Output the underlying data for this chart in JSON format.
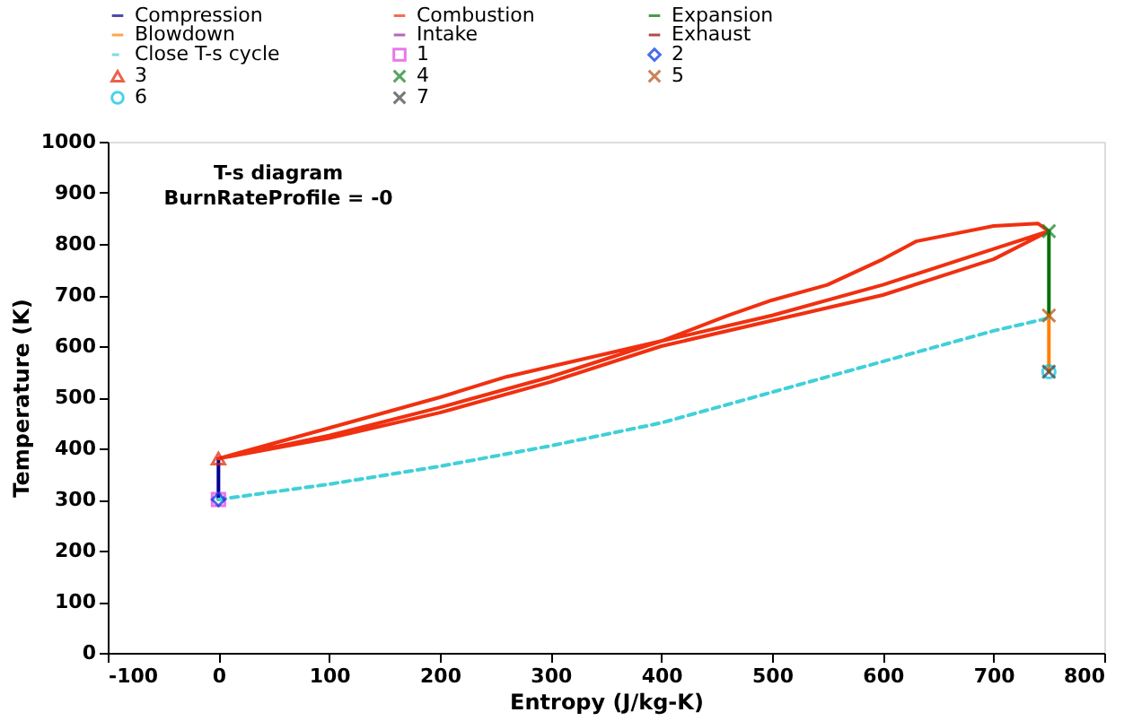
{
  "chart_data": {
    "type": "line",
    "xlabel": "Entropy (J/kg-K)",
    "ylabel": "Temperature (K)",
    "xlim": [
      -100,
      800
    ],
    "xticks": [
      -100,
      0,
      100,
      200,
      300,
      400,
      500,
      600,
      700,
      800
    ],
    "ylim": [
      0,
      1000
    ],
    "yticks": [
      0,
      100,
      200,
      300,
      400,
      500,
      600,
      700,
      800,
      900,
      1000
    ],
    "grid": false,
    "legend": "top",
    "annotations": [
      "T-s diagram",
      "BurnRateProfile =  -0"
    ],
    "series": [
      {
        "name": "Compression",
        "color": "#000090",
        "x": [
          0,
          0
        ],
        "values": [
          300,
          380
        ]
      },
      {
        "name": "Combustion",
        "color": "#f03010",
        "x": [
          0,
          100,
          200,
          300,
          400,
          500,
          600,
          700,
          750,
          740,
          700,
          630,
          600,
          550,
          500,
          460,
          400,
          300,
          260,
          200,
          100,
          0,
          100,
          200,
          300,
          350,
          400,
          500,
          600,
          700,
          750
        ],
        "values": [
          380,
          420,
          470,
          530,
          600,
          650,
          700,
          770,
          825,
          840,
          835,
          805,
          770,
          720,
          690,
          660,
          610,
          560,
          540,
          500,
          440,
          380,
          425,
          480,
          540,
          575,
          610,
          660,
          720,
          790,
          825
        ]
      },
      {
        "name": "Expansion",
        "color": "#007000",
        "x": [
          750,
          750
        ],
        "values": [
          825,
          660
        ]
      },
      {
        "name": "Blowdown",
        "color": "#ff8000",
        "x": [
          750,
          750
        ],
        "values": [
          660,
          550
        ]
      },
      {
        "name": "Intake",
        "color": "#a020a0"
      },
      {
        "name": "Exhaust",
        "color": "#900000"
      },
      {
        "name": "Close T-s cycle",
        "color": "#40d0d8",
        "line_style": "dashed",
        "x": [
          0,
          100,
          200,
          300,
          400,
          500,
          600,
          700,
          750
        ],
        "values": [
          300,
          330,
          365,
          405,
          450,
          510,
          570,
          630,
          655
        ]
      },
      {
        "name": "1",
        "type": "scatter",
        "marker": "square",
        "color": "#e040e0",
        "x": [
          0
        ],
        "values": [
          300
        ]
      },
      {
        "name": "2",
        "type": "scatter",
        "marker": "diamond",
        "color": "#0030e0",
        "x": [
          0
        ],
        "values": [
          300
        ]
      },
      {
        "name": "3",
        "type": "scatter",
        "marker": "triangle",
        "color": "#e02000",
        "x": [
          0
        ],
        "values": [
          380
        ]
      },
      {
        "name": "4",
        "type": "scatter",
        "marker": "cross",
        "color": "#108020",
        "x": [
          750
        ],
        "values": [
          825
        ]
      },
      {
        "name": "5",
        "type": "scatter",
        "marker": "cross",
        "color": "#b05010",
        "x": [
          750
        ],
        "values": [
          660
        ]
      },
      {
        "name": "6",
        "type": "scatter",
        "marker": "circle",
        "color": "#00c0e0",
        "x": [
          750
        ],
        "values": [
          550
        ]
      },
      {
        "name": "7",
        "type": "scatter",
        "marker": "cross",
        "color": "#404040",
        "x": [
          750
        ],
        "values": [
          550
        ]
      }
    ]
  }
}
